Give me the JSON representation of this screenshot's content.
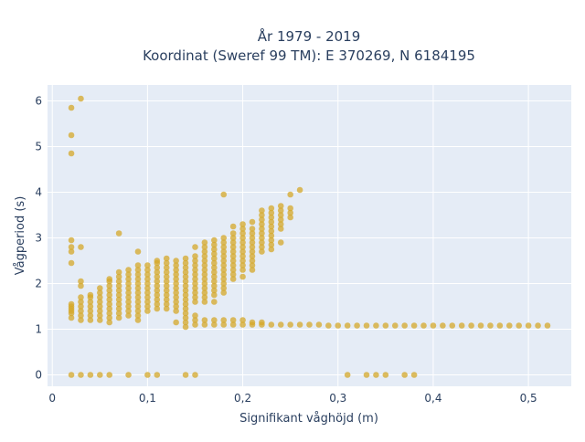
{
  "chart_data": {
    "type": "scatter",
    "title": "År 1979 - 2019",
    "subtitle": "Koordinat (Sweref 99 TM): E 370269, N 6184195",
    "xlabel": "Signifikant våghöjd (m)",
    "ylabel": "Vågperiod (s)",
    "xlim": [
      -0.005,
      0.545
    ],
    "ylim": [
      -0.25,
      6.35
    ],
    "x_ticks": [
      0,
      0.1,
      0.2,
      0.3,
      0.4,
      0.5
    ],
    "x_tick_labels": [
      "0",
      "0,1",
      "0,2",
      "0,3",
      "0,4",
      "0,5"
    ],
    "y_ticks": [
      0,
      1,
      2,
      3,
      4,
      5,
      6
    ],
    "y_tick_labels": [
      "0",
      "1",
      "2",
      "3",
      "4",
      "5",
      "6"
    ],
    "grid": true,
    "marker_color": "#d4a82a",
    "plot_background": "#e5ecf6",
    "point_columns": [
      {
        "x": 0.02,
        "y": [
          1.25,
          1.35,
          1.4,
          1.45,
          1.5,
          1.55,
          2.45,
          2.7,
          2.8,
          2.95,
          4.85,
          5.25,
          5.85
        ]
      },
      {
        "x": 0.03,
        "y": [
          1.2,
          1.3,
          1.4,
          1.5,
          1.6,
          1.7,
          1.95,
          2.05,
          2.8,
          6.05
        ]
      },
      {
        "x": 0.04,
        "y": [
          1.2,
          1.3,
          1.4,
          1.5,
          1.6,
          1.7,
          1.75
        ]
      },
      {
        "x": 0.05,
        "y": [
          1.2,
          1.3,
          1.4,
          1.5,
          1.6,
          1.7,
          1.8,
          1.9
        ]
      },
      {
        "x": 0.06,
        "y": [
          1.15,
          1.25,
          1.35,
          1.45,
          1.55,
          1.65,
          1.75,
          1.85,
          1.95,
          2.05,
          2.1
        ]
      },
      {
        "x": 0.07,
        "y": [
          1.25,
          1.35,
          1.45,
          1.55,
          1.65,
          1.75,
          1.85,
          1.95,
          2.05,
          2.15,
          2.25,
          3.1
        ]
      },
      {
        "x": 0.08,
        "y": [
          1.3,
          1.4,
          1.5,
          1.6,
          1.7,
          1.8,
          1.9,
          2.0,
          2.1,
          2.2,
          2.3
        ]
      },
      {
        "x": 0.09,
        "y": [
          1.2,
          1.3,
          1.4,
          1.5,
          1.6,
          1.7,
          1.8,
          1.9,
          2.0,
          2.1,
          2.2,
          2.3,
          2.4,
          2.7
        ]
      },
      {
        "x": 0.1,
        "y": [
          1.4,
          1.5,
          1.6,
          1.7,
          1.8,
          1.9,
          2.0,
          2.1,
          2.2,
          2.3,
          2.4
        ]
      },
      {
        "x": 0.11,
        "y": [
          1.45,
          1.55,
          1.65,
          1.75,
          1.85,
          1.95,
          2.05,
          2.15,
          2.25,
          2.35,
          2.45,
          2.5
        ]
      },
      {
        "x": 0.12,
        "y": [
          1.45,
          1.55,
          1.65,
          1.75,
          1.85,
          1.95,
          2.05,
          2.15,
          2.25,
          2.35,
          2.45,
          2.55
        ]
      },
      {
        "x": 0.13,
        "y": [
          1.15,
          1.4,
          1.5,
          1.6,
          1.7,
          1.8,
          1.9,
          2.0,
          2.1,
          2.2,
          2.3,
          2.4,
          2.5
        ]
      },
      {
        "x": 0.14,
        "y": [
          1.05,
          1.15,
          1.25,
          1.35,
          1.45,
          1.55,
          1.65,
          1.75,
          1.85,
          1.95,
          2.05,
          2.15,
          2.25,
          2.35,
          2.45,
          2.55
        ]
      },
      {
        "x": 0.15,
        "y": [
          1.1,
          1.2,
          1.3,
          1.6,
          1.7,
          1.8,
          1.9,
          2.0,
          2.1,
          2.2,
          2.3,
          2.4,
          2.5,
          2.6,
          2.8
        ]
      },
      {
        "x": 0.16,
        "y": [
          1.1,
          1.2,
          1.6,
          1.7,
          1.8,
          1.9,
          2.0,
          2.1,
          2.2,
          2.3,
          2.4,
          2.5,
          2.6,
          2.7,
          2.8,
          2.9
        ]
      },
      {
        "x": 0.17,
        "y": [
          1.1,
          1.2,
          1.6,
          1.75,
          1.85,
          1.95,
          2.05,
          2.15,
          2.25,
          2.35,
          2.45,
          2.55,
          2.65,
          2.75,
          2.85,
          2.95
        ]
      },
      {
        "x": 0.18,
        "y": [
          1.1,
          1.2,
          1.8,
          1.9,
          2.0,
          2.1,
          2.2,
          2.3,
          2.4,
          2.5,
          2.6,
          2.7,
          2.8,
          2.9,
          3.0,
          3.95
        ]
      },
      {
        "x": 0.19,
        "y": [
          1.1,
          1.2,
          2.1,
          2.2,
          2.3,
          2.4,
          2.5,
          2.6,
          2.7,
          2.8,
          2.9,
          3.0,
          3.1,
          3.25
        ]
      },
      {
        "x": 0.2,
        "y": [
          1.1,
          1.2,
          2.15,
          2.3,
          2.4,
          2.5,
          2.6,
          2.7,
          2.8,
          2.9,
          3.0,
          3.1,
          3.2,
          3.3
        ]
      },
      {
        "x": 0.21,
        "y": [
          1.1,
          1.15,
          2.3,
          2.4,
          2.5,
          2.6,
          2.7,
          2.8,
          2.9,
          3.0,
          3.1,
          3.2,
          3.35
        ]
      },
      {
        "x": 0.22,
        "y": [
          1.1,
          1.15,
          2.7,
          2.8,
          2.9,
          3.0,
          3.1,
          3.2,
          3.3,
          3.4,
          3.5,
          3.6
        ]
      },
      {
        "x": 0.23,
        "y": [
          1.1,
          2.75,
          2.85,
          2.95,
          3.05,
          3.15,
          3.25,
          3.35,
          3.45,
          3.55,
          3.65
        ]
      },
      {
        "x": 0.24,
        "y": [
          1.1,
          2.9,
          3.2,
          3.3,
          3.4,
          3.5,
          3.6,
          3.7
        ]
      },
      {
        "x": 0.25,
        "y": [
          1.1,
          3.45,
          3.55,
          3.65,
          3.95
        ]
      },
      {
        "x": 0.26,
        "y": [
          1.1,
          4.05
        ]
      },
      {
        "x": 0.27,
        "y": [
          1.1
        ]
      },
      {
        "x": 0.28,
        "y": [
          1.1
        ]
      },
      {
        "x": 0.29,
        "y": [
          1.08
        ]
      },
      {
        "x": 0.3,
        "y": [
          1.08
        ]
      },
      {
        "x": 0.31,
        "y": [
          1.08
        ]
      },
      {
        "x": 0.32,
        "y": [
          1.08
        ]
      },
      {
        "x": 0.33,
        "y": [
          1.08
        ]
      },
      {
        "x": 0.34,
        "y": [
          1.08
        ]
      },
      {
        "x": 0.35,
        "y": [
          1.08
        ]
      },
      {
        "x": 0.36,
        "y": [
          1.08
        ]
      },
      {
        "x": 0.37,
        "y": [
          1.08
        ]
      },
      {
        "x": 0.38,
        "y": [
          1.08
        ]
      },
      {
        "x": 0.39,
        "y": [
          1.08
        ]
      },
      {
        "x": 0.4,
        "y": [
          1.08
        ]
      },
      {
        "x": 0.41,
        "y": [
          1.08
        ]
      },
      {
        "x": 0.42,
        "y": [
          1.08
        ]
      },
      {
        "x": 0.43,
        "y": [
          1.08
        ]
      },
      {
        "x": 0.44,
        "y": [
          1.08
        ]
      },
      {
        "x": 0.45,
        "y": [
          1.08
        ]
      },
      {
        "x": 0.46,
        "y": [
          1.08
        ]
      },
      {
        "x": 0.47,
        "y": [
          1.08
        ]
      },
      {
        "x": 0.48,
        "y": [
          1.08
        ]
      },
      {
        "x": 0.49,
        "y": [
          1.08
        ]
      },
      {
        "x": 0.5,
        "y": [
          1.08
        ]
      },
      {
        "x": 0.51,
        "y": [
          1.08
        ]
      },
      {
        "x": 0.52,
        "y": [
          1.08
        ]
      }
    ],
    "zero_points_x": [
      0.02,
      0.03,
      0.04,
      0.05,
      0.06,
      0.08,
      0.1,
      0.11,
      0.14,
      0.15,
      0.31,
      0.33,
      0.34,
      0.35,
      0.37,
      0.38
    ]
  }
}
